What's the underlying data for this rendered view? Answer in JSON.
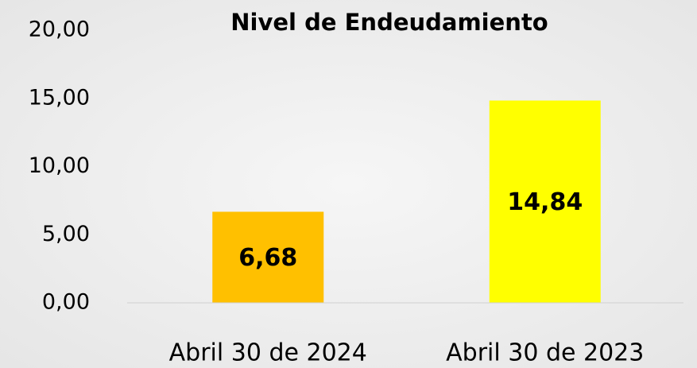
{
  "chart_data": {
    "type": "bar",
    "title": "Nivel de Endeudamiento",
    "categories": [
      "Abril 30 de 2024",
      "Abril 30 de 2023"
    ],
    "values": [
      6.68,
      14.84
    ],
    "value_labels": [
      "6,68",
      "14,84"
    ],
    "colors": [
      "#ffc000",
      "#ffff00"
    ],
    "ylim": [
      0,
      20
    ],
    "yticks": [
      {
        "value": 0,
        "label": "0,00"
      },
      {
        "value": 5,
        "label": "5,00"
      },
      {
        "value": 10,
        "label": "10,00"
      },
      {
        "value": 15,
        "label": "15,00"
      },
      {
        "value": 20,
        "label": "20,00"
      }
    ],
    "grid": false
  }
}
